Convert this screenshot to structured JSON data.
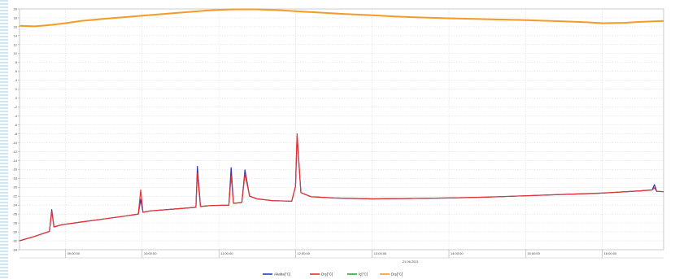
{
  "chart_data": {
    "type": "line",
    "title": "",
    "xlabel": "",
    "ylabel": "",
    "x_axis": {
      "min_hour": 8.4,
      "max_hour": 16.8,
      "ticks": [
        {
          "hour": 9,
          "label": "09:00:00"
        },
        {
          "hour": 10,
          "label": "10:00:00"
        },
        {
          "hour": 11,
          "label": "11:00:00"
        },
        {
          "hour": 12,
          "label": "12:00:00"
        },
        {
          "hour": 13,
          "label": "13:00:00"
        },
        {
          "hour": 14,
          "label": "14:00:00"
        },
        {
          "hour": 15,
          "label": "15:00:00"
        },
        {
          "hour": 16,
          "label": "16:00:00"
        }
      ],
      "date_label": "21.06.2021",
      "date_hour": 13.5
    },
    "y_axis": {
      "min": -34,
      "max": 20,
      "ticks": [
        {
          "value": 20,
          "label": "20"
        },
        {
          "value": 18,
          "label": "18"
        },
        {
          "value": 16,
          "label": "16"
        },
        {
          "value": 14,
          "label": "14"
        },
        {
          "value": 12,
          "label": "12"
        },
        {
          "value": 10,
          "label": "10"
        },
        {
          "value": 8,
          "label": "8"
        },
        {
          "value": 6,
          "label": "6"
        },
        {
          "value": 4,
          "label": "4"
        },
        {
          "value": 2,
          "label": "2"
        },
        {
          "value": 0,
          "label": "0"
        },
        {
          "value": -2,
          "label": "-2"
        },
        {
          "value": -4,
          "label": "-4"
        },
        {
          "value": -6,
          "label": "-6"
        },
        {
          "value": -8,
          "label": "-8"
        },
        {
          "value": -10,
          "label": "-10"
        },
        {
          "value": -12,
          "label": "-12"
        },
        {
          "value": -14,
          "label": "-14"
        },
        {
          "value": -16,
          "label": "-16"
        },
        {
          "value": -18,
          "label": "-18"
        },
        {
          "value": -20,
          "label": "-20"
        },
        {
          "value": -22,
          "label": "-22"
        },
        {
          "value": -24,
          "label": "-24"
        },
        {
          "value": -26,
          "label": "-26"
        },
        {
          "value": -28,
          "label": "-28"
        },
        {
          "value": -30,
          "label": "-30"
        },
        {
          "value": -32,
          "label": "-32"
        },
        {
          "value": -34,
          "label": "-34"
        }
      ]
    },
    "grid": true,
    "legend_position": "bottom-center",
    "series": [
      {
        "name": "Akaba[°C]",
        "color": "#2a3ab8",
        "points": [
          [
            8.4,
            -32.0
          ],
          [
            8.6,
            -31.0
          ],
          [
            8.7,
            -30.4
          ],
          [
            8.79,
            -29.9
          ],
          [
            8.82,
            -25.0
          ],
          [
            8.85,
            -28.9
          ],
          [
            8.95,
            -28.4
          ],
          [
            9.2,
            -27.8
          ],
          [
            9.5,
            -27.1
          ],
          [
            9.8,
            -26.4
          ],
          [
            9.95,
            -26.0
          ],
          [
            9.98,
            -22.7
          ],
          [
            10.01,
            -25.6
          ],
          [
            10.1,
            -25.3
          ],
          [
            10.4,
            -24.9
          ],
          [
            10.7,
            -24.5
          ],
          [
            10.72,
            -15.3
          ],
          [
            10.76,
            -24.3
          ],
          [
            10.9,
            -24.1
          ],
          [
            11.13,
            -24.0
          ],
          [
            11.16,
            -15.6
          ],
          [
            11.19,
            -23.6
          ],
          [
            11.3,
            -23.4
          ],
          [
            11.34,
            -16.1
          ],
          [
            11.4,
            -22.0
          ],
          [
            11.5,
            -22.6
          ],
          [
            11.7,
            -23.0
          ],
          [
            11.95,
            -23.1
          ],
          [
            12.0,
            -19.8
          ],
          [
            12.02,
            -8.5
          ],
          [
            12.07,
            -21.2
          ],
          [
            12.2,
            -22.1
          ],
          [
            12.5,
            -22.4
          ],
          [
            13.0,
            -22.6
          ],
          [
            13.5,
            -22.5
          ],
          [
            14.0,
            -22.4
          ],
          [
            14.5,
            -22.2
          ],
          [
            15.0,
            -21.9
          ],
          [
            15.5,
            -21.6
          ],
          [
            16.0,
            -21.3
          ],
          [
            16.5,
            -20.8
          ],
          [
            16.65,
            -20.6
          ],
          [
            16.68,
            -19.4
          ],
          [
            16.71,
            -20.9
          ],
          [
            16.8,
            -21.0
          ]
        ]
      },
      {
        "name": "Dış[°C]",
        "color": "#e8322e",
        "points": [
          [
            8.4,
            -32.0
          ],
          [
            8.6,
            -31.0
          ],
          [
            8.7,
            -30.4
          ],
          [
            8.79,
            -29.9
          ],
          [
            8.82,
            -25.4
          ],
          [
            8.85,
            -28.9
          ],
          [
            8.95,
            -28.4
          ],
          [
            9.2,
            -27.8
          ],
          [
            9.5,
            -27.1
          ],
          [
            9.8,
            -26.4
          ],
          [
            9.95,
            -26.0
          ],
          [
            9.98,
            -20.6
          ],
          [
            10.01,
            -25.6
          ],
          [
            10.1,
            -25.3
          ],
          [
            10.4,
            -24.9
          ],
          [
            10.7,
            -24.5
          ],
          [
            10.72,
            -16.8
          ],
          [
            10.76,
            -24.3
          ],
          [
            10.9,
            -24.1
          ],
          [
            11.13,
            -24.0
          ],
          [
            11.16,
            -17.4
          ],
          [
            11.19,
            -23.6
          ],
          [
            11.3,
            -23.4
          ],
          [
            11.34,
            -17.0
          ],
          [
            11.4,
            -22.0
          ],
          [
            11.5,
            -22.6
          ],
          [
            11.7,
            -23.0
          ],
          [
            11.95,
            -23.1
          ],
          [
            12.0,
            -19.8
          ],
          [
            12.02,
            -8.0
          ],
          [
            12.07,
            -21.2
          ],
          [
            12.2,
            -22.1
          ],
          [
            12.5,
            -22.4
          ],
          [
            13.0,
            -22.6
          ],
          [
            13.5,
            -22.5
          ],
          [
            14.0,
            -22.4
          ],
          [
            14.5,
            -22.2
          ],
          [
            15.0,
            -21.9
          ],
          [
            15.5,
            -21.6
          ],
          [
            16.0,
            -21.3
          ],
          [
            16.5,
            -20.8
          ],
          [
            16.65,
            -20.6
          ],
          [
            16.68,
            -20.1
          ],
          [
            16.71,
            -20.9
          ],
          [
            16.8,
            -21.0
          ]
        ]
      },
      {
        "name": "İç[°C]",
        "color": "#2fa33a",
        "points": []
      },
      {
        "name": "Dış[°C]",
        "color": "#f59a26",
        "points": [
          [
            8.4,
            16.2
          ],
          [
            8.6,
            16.1
          ],
          [
            8.8,
            16.4
          ],
          [
            9.0,
            16.8
          ],
          [
            9.2,
            17.3
          ],
          [
            9.5,
            17.8
          ],
          [
            9.8,
            18.2
          ],
          [
            10.0,
            18.5
          ],
          [
            10.3,
            18.9
          ],
          [
            10.6,
            19.3
          ],
          [
            10.8,
            19.6
          ],
          [
            11.0,
            19.8
          ],
          [
            11.2,
            19.9
          ],
          [
            11.5,
            19.9
          ],
          [
            11.8,
            19.7
          ],
          [
            12.0,
            19.5
          ],
          [
            12.3,
            19.2
          ],
          [
            12.6,
            18.9
          ],
          [
            13.0,
            18.6
          ],
          [
            13.3,
            18.3
          ],
          [
            13.6,
            18.1
          ],
          [
            14.0,
            17.9
          ],
          [
            14.5,
            17.7
          ],
          [
            15.0,
            17.5
          ],
          [
            15.5,
            17.2
          ],
          [
            15.8,
            17.0
          ],
          [
            16.0,
            16.8
          ],
          [
            16.3,
            16.9
          ],
          [
            16.5,
            17.1
          ],
          [
            16.8,
            17.3
          ]
        ]
      }
    ]
  }
}
